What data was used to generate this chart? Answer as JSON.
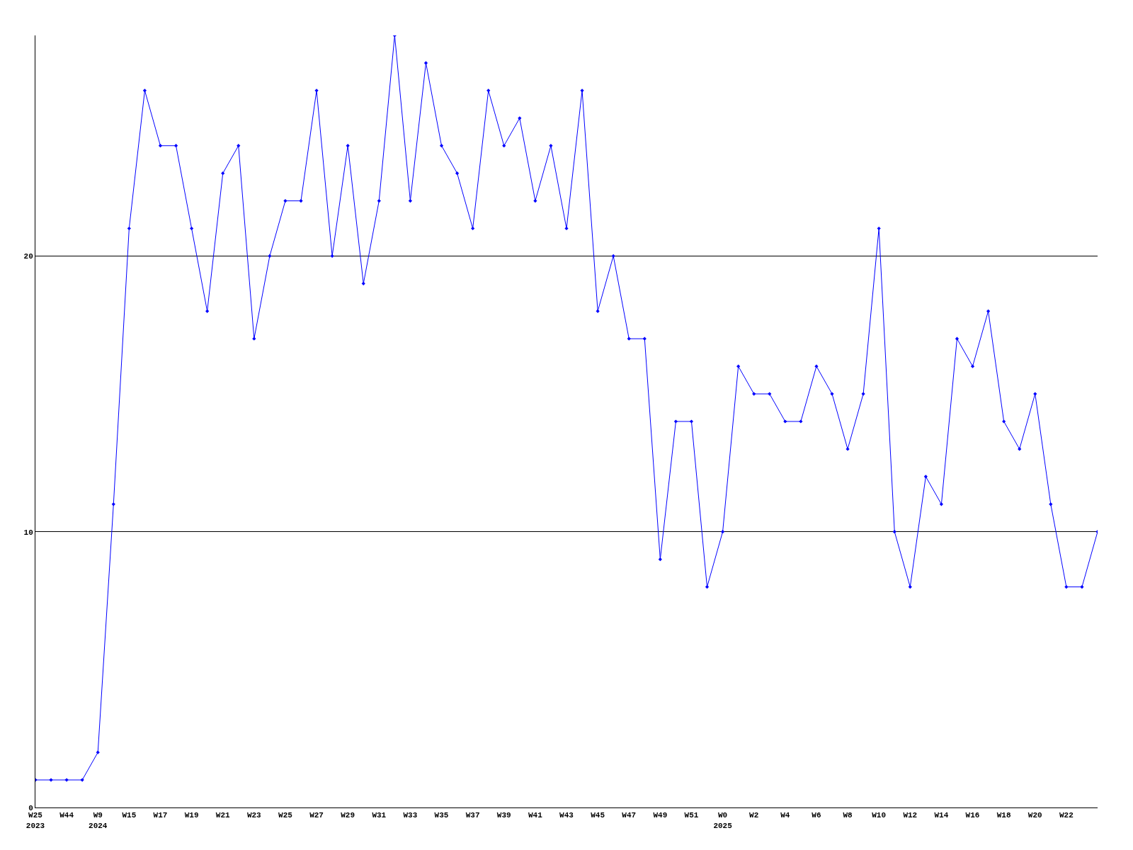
{
  "chart_data": {
    "type": "line",
    "categories": [
      "W25\n2023",
      null,
      "W44",
      null,
      "W9\n2024",
      null,
      "W15",
      null,
      "W17",
      null,
      "W19",
      null,
      "W21",
      null,
      "W23",
      null,
      "W25",
      null,
      "W27",
      null,
      "W29",
      null,
      "W31",
      null,
      "W33",
      null,
      "W35",
      null,
      "W37",
      null,
      "W39",
      null,
      "W41",
      null,
      "W43",
      null,
      "W45",
      null,
      "W47",
      null,
      "W49",
      null,
      "W51",
      null,
      "W0\n2025",
      null,
      "W2",
      null,
      "W4",
      null,
      "W6",
      null,
      "W8",
      null,
      "W10",
      null,
      "W12",
      null,
      "W14",
      null,
      "W16",
      null,
      "W18",
      null,
      "W20",
      null,
      "W22",
      null,
      null
    ],
    "series": [
      {
        "color": "#0000ff",
        "values": [
          1,
          1,
          1,
          1,
          2,
          11,
          21,
          26,
          24,
          24,
          21,
          18,
          23,
          24,
          17,
          20,
          22,
          22,
          26,
          20,
          24,
          19,
          22,
          28,
          22,
          27,
          24,
          23,
          21,
          26,
          24,
          25,
          22,
          24,
          21,
          26,
          18,
          20,
          17,
          17,
          9,
          14,
          14,
          8,
          10,
          16,
          15,
          15,
          14,
          14,
          16,
          15,
          13,
          15,
          21,
          10,
          8,
          12,
          11,
          17,
          16,
          18,
          14,
          13,
          15,
          11,
          8,
          8,
          10
        ]
      }
    ],
    "ylim": [
      0,
      28
    ],
    "yticks": [
      0,
      10,
      20
    ],
    "grid": "y",
    "marker": "diamond",
    "line_style": "solid"
  }
}
